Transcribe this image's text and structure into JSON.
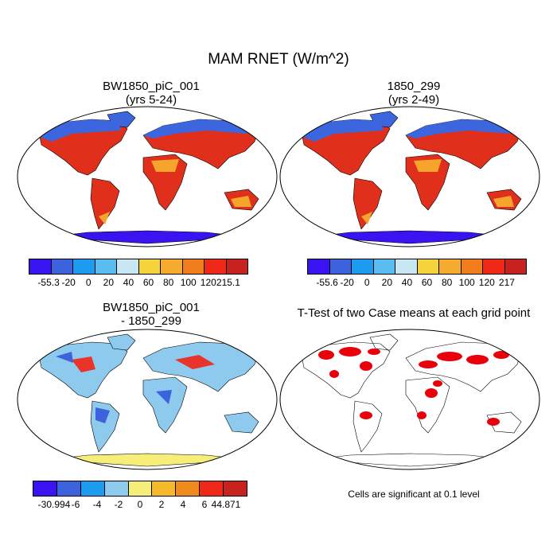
{
  "title": "MAM RNET (W/m^2)",
  "panels": [
    {
      "title_line1": "BW1850_piC_001",
      "title_line2": "(yrs 5-24)",
      "colorbar": {
        "colors": [
          "#3a14f0",
          "#3d62dd",
          "#1d9bf0",
          "#5bbcf0",
          "#c7e7f5",
          "#f6d33a",
          "#f5ab30",
          "#f07c1c",
          "#f02818",
          "#c8221f"
        ],
        "labels": [
          "-55.3",
          "-20",
          "0",
          "20",
          "40",
          "60",
          "80",
          "100",
          "120",
          "215.1"
        ]
      }
    },
    {
      "title_line1": "1850_299",
      "title_line2": "(yrs 2-49)",
      "colorbar": {
        "colors": [
          "#3a14f0",
          "#3d62dd",
          "#1d9bf0",
          "#5bbcf0",
          "#c7e7f5",
          "#f6d33a",
          "#f5ab30",
          "#f07c1c",
          "#f02818",
          "#c8221f"
        ],
        "labels": [
          "-55.6",
          "-20",
          "0",
          "20",
          "40",
          "60",
          "80",
          "100",
          "120",
          "217"
        ]
      }
    },
    {
      "title_line1": "BW1850_piC_001",
      "title_line2": "- 1850_299",
      "colorbar": {
        "colors": [
          "#3a14f0",
          "#3d62dd",
          "#1d9bf0",
          "#8ec9ee",
          "#f7ee7a",
          "#f6b92b",
          "#f08a1c",
          "#f02818",
          "#c8221f"
        ],
        "labels": [
          "-30.994",
          "-6",
          "-4",
          "-2",
          "0",
          "2",
          "4",
          "6",
          "44.871"
        ]
      }
    },
    {
      "title_line1": "T-Test of two Case means at each grid point",
      "title_line2": "",
      "note": "Cells are significant at 0.1 level"
    }
  ],
  "map_colors": {
    "ocean": "#ffffff",
    "abs_continent": "#e0301c",
    "abs_warm": "#f5a52c",
    "abs_cold": "#3c66dd",
    "abs_antarctica": "#3a14f0",
    "diff_base": "#8ec9ee",
    "diff_warm": "#e8342a",
    "diff_cool": "#3d62dd",
    "diff_antarctica": "#f7ee7a",
    "sig_fill": "#e8000b"
  }
}
